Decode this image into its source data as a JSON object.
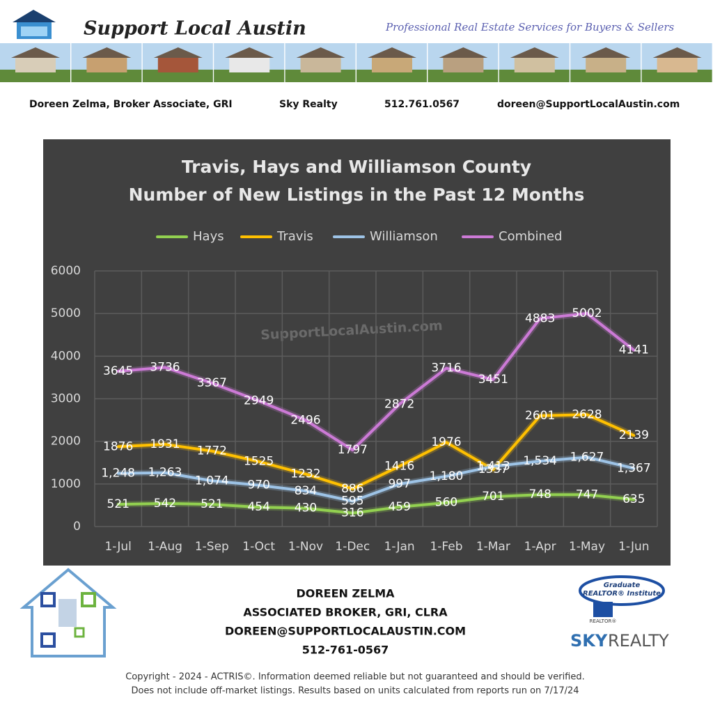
{
  "header": {
    "brand": "Support Local Austin",
    "tagline": "Professional Real Estate Services for Buyers & Sellers",
    "contact": [
      "Doreen Zelma,  Broker Associate, GRI",
      "Sky Realty",
      "512.761.0567",
      "doreen@SupportLocalAustin.com"
    ]
  },
  "chart_data": {
    "type": "line",
    "title": [
      "Travis, Hays and Williamson County",
      "Number of New Listings in the Past 12 Months"
    ],
    "watermark": "SupportLocalAustin.com",
    "categories": [
      "1-Jul",
      "1-Aug",
      "1-Sep",
      "1-Oct",
      "1-Nov",
      "1-Dec",
      "1-Jan",
      "1-Feb",
      "1-Mar",
      "1-Apr",
      "1-May",
      "1-Jun"
    ],
    "series": [
      {
        "name": "Hays",
        "color": "#92d050",
        "values": [
          521,
          542,
          521,
          454,
          430,
          316,
          459,
          560,
          701,
          748,
          747,
          635
        ]
      },
      {
        "name": "Travis",
        "color": "#ffc000",
        "values": [
          1876,
          1931,
          1772,
          1525,
          1232,
          886,
          1416,
          1976,
          1337,
          2601,
          2628,
          2139
        ]
      },
      {
        "name": "Williamson",
        "color": "#9dc3e6",
        "values": [
          1248,
          1263,
          1074,
          970,
          834,
          595,
          997,
          1180,
          1413,
          1534,
          1627,
          1367
        ],
        "value_labels": [
          "1,248",
          "1,263",
          "1,074",
          "970",
          "834",
          "595",
          "997",
          "1,180",
          "1,413",
          "1,534",
          "1,627",
          "1,367"
        ]
      },
      {
        "name": "Combined",
        "color": "#cc7ad6",
        "values": [
          3645,
          3736,
          3367,
          2949,
          2496,
          1797,
          2872,
          3716,
          3451,
          4883,
          5002,
          4141
        ]
      }
    ],
    "ylim": [
      0,
      6000
    ],
    "yticks": [
      0,
      1000,
      2000,
      3000,
      4000,
      5000,
      6000
    ],
    "grid": true,
    "legend": "top"
  },
  "footer": {
    "agent": [
      "DOREEN ZELMA",
      "ASSOCIATED BROKER, GRI, CLRA",
      "DOREEN@SUPPORTLOCALAUSTIN.COM",
      "512-761-0567"
    ],
    "badge": [
      "Graduate",
      "REALTOR® Institute",
      "REALTOR®"
    ],
    "company": [
      "SKY",
      "REALTY"
    ],
    "copyright": [
      "Copyright - 2024 - ACTRIS©. Information deemed reliable but not guaranteed and should be verified.",
      "Does not include off-market listings. Results based on units calculated from reports run on 7/17/24"
    ]
  }
}
